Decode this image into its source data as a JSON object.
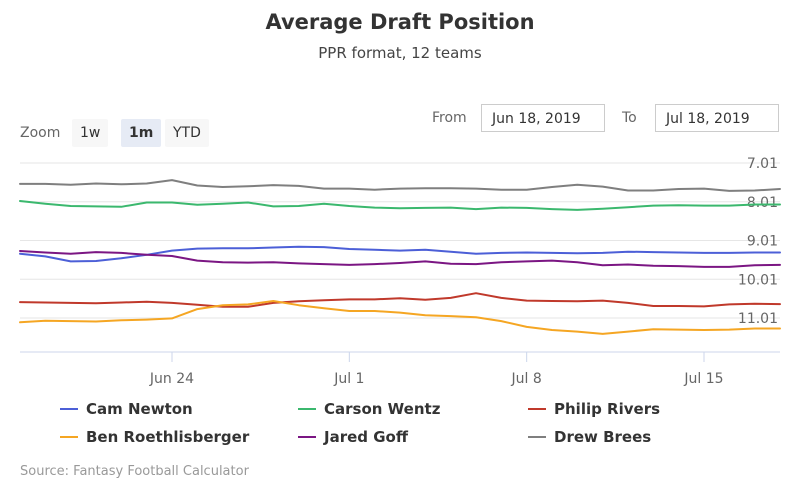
{
  "header": {
    "title": "Average Draft Position",
    "subtitle": "PPR format, 12 teams"
  },
  "zoom": {
    "label": "Zoom",
    "buttons": [
      "1w",
      "1m",
      "YTD"
    ],
    "active": "1m"
  },
  "range": {
    "from_label": "From",
    "from_value": "Jun 18, 2019",
    "to_label": "To",
    "to_value": "Jul 18, 2019"
  },
  "source": "Source: Fantasy Football Calculator",
  "colors": {
    "axis": "#ccd6eb",
    "grid": "#e6e6e6",
    "tick_text": "#666666"
  },
  "chart_data": {
    "type": "line",
    "title": "Average Draft Position",
    "subtitle": "PPR format, 12 teams",
    "y_reversed": true,
    "ylim": [
      7.01,
      12.0
    ],
    "ytick_values": [
      7.01,
      8.01,
      9.01,
      10.01,
      11.01
    ],
    "ytick_labels": [
      "7.01",
      "8.01",
      "9.01",
      "10.01",
      "11.01"
    ],
    "xtick_labels": [
      "Jun 24",
      "Jul 1",
      "Jul 8",
      "Jul 15"
    ],
    "xtick_day_index": [
      6,
      13,
      20,
      27
    ],
    "x": [
      "Jun 18",
      "Jun 19",
      "Jun 20",
      "Jun 21",
      "Jun 22",
      "Jun 23",
      "Jun 24",
      "Jun 25",
      "Jun 26",
      "Jun 27",
      "Jun 28",
      "Jun 29",
      "Jun 30",
      "Jul 1",
      "Jul 2",
      "Jul 3",
      "Jul 4",
      "Jul 5",
      "Jul 6",
      "Jul 7",
      "Jul 8",
      "Jul 9",
      "Jul 10",
      "Jul 11",
      "Jul 12",
      "Jul 13",
      "Jul 14",
      "Jul 15",
      "Jul 16",
      "Jul 17",
      "Jul 18"
    ],
    "legend_position": "bottom",
    "grid": true,
    "series": [
      {
        "name": "Cam Newton",
        "color": "#4c5fd7",
        "values": [
          9.35,
          9.42,
          9.55,
          9.54,
          9.47,
          9.38,
          9.27,
          9.22,
          9.21,
          9.21,
          9.19,
          9.17,
          9.18,
          9.23,
          9.25,
          9.27,
          9.25,
          9.3,
          9.35,
          9.33,
          9.32,
          9.33,
          9.34,
          9.33,
          9.3,
          9.31,
          9.32,
          9.33,
          9.33,
          9.32,
          9.32
        ]
      },
      {
        "name": "Carson Wentz",
        "color": "#3bb86e",
        "values": [
          7.99,
          8.06,
          8.12,
          8.13,
          8.14,
          8.03,
          8.03,
          8.09,
          8.06,
          8.03,
          8.13,
          8.12,
          8.06,
          8.12,
          8.16,
          8.18,
          8.17,
          8.16,
          8.2,
          8.16,
          8.17,
          8.2,
          8.22,
          8.19,
          8.15,
          8.11,
          8.1,
          8.11,
          8.11,
          8.08,
          8.08
        ]
      },
      {
        "name": "Philip Rivers",
        "color": "#c0392b",
        "values": [
          10.6,
          10.61,
          10.62,
          10.63,
          10.61,
          10.59,
          10.62,
          10.67,
          10.72,
          10.72,
          10.62,
          10.58,
          10.55,
          10.53,
          10.53,
          10.5,
          10.54,
          10.49,
          10.37,
          10.49,
          10.56,
          10.57,
          10.58,
          10.56,
          10.62,
          10.7,
          10.7,
          10.71,
          10.66,
          10.64,
          10.65
        ]
      },
      {
        "name": "Ben Roethlisberger",
        "color": "#f5a623",
        "values": [
          11.12,
          11.08,
          11.09,
          11.1,
          11.07,
          11.05,
          11.02,
          10.78,
          10.68,
          10.66,
          10.57,
          10.68,
          10.76,
          10.83,
          10.83,
          10.87,
          10.94,
          10.96,
          10.99,
          11.09,
          11.24,
          11.32,
          11.36,
          11.42,
          11.36,
          11.3,
          11.31,
          11.32,
          11.31,
          11.28,
          11.28
        ]
      },
      {
        "name": "Jared Goff",
        "color": "#7b1683",
        "values": [
          9.28,
          9.32,
          9.35,
          9.31,
          9.33,
          9.38,
          9.41,
          9.53,
          9.57,
          9.58,
          9.57,
          9.6,
          9.62,
          9.64,
          9.62,
          9.59,
          9.55,
          9.61,
          9.62,
          9.57,
          9.55,
          9.53,
          9.57,
          9.65,
          9.63,
          9.66,
          9.67,
          9.69,
          9.69,
          9.65,
          9.64
        ]
      },
      {
        "name": "Drew Brees",
        "color": "#7f7f7f",
        "values": [
          7.55,
          7.55,
          7.57,
          7.54,
          7.56,
          7.54,
          7.45,
          7.59,
          7.63,
          7.61,
          7.58,
          7.6,
          7.67,
          7.67,
          7.7,
          7.67,
          7.66,
          7.66,
          7.67,
          7.7,
          7.7,
          7.63,
          7.57,
          7.62,
          7.72,
          7.72,
          7.68,
          7.67,
          7.73,
          7.72,
          7.68
        ]
      }
    ]
  }
}
